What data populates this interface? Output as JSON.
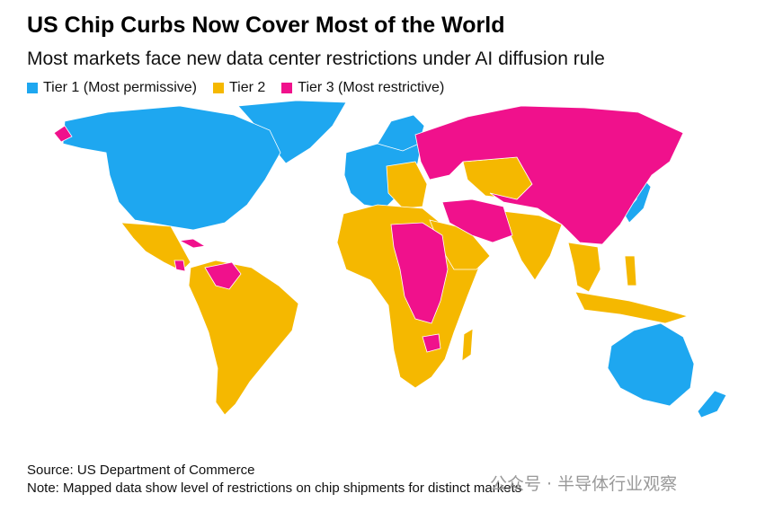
{
  "header": {
    "title": "US Chip Curbs Now Cover Most of the World",
    "subtitle": "Most markets face new data center restrictions under AI diffusion rule"
  },
  "legend": {
    "items": [
      {
        "label": "Tier 1 (Most permissive)",
        "color": "#1ea7f0"
      },
      {
        "label": "Tier 2",
        "color": "#f5b800"
      },
      {
        "label": "Tier 3 (Most restrictive)",
        "color": "#f0118c"
      }
    ]
  },
  "footer": {
    "source": "Source: US Department of Commerce",
    "note": "Note: Mapped data show level of restrictions on chip shipments for distinct markets"
  },
  "watermark": "公众号 · 半导体行业观察"
}
